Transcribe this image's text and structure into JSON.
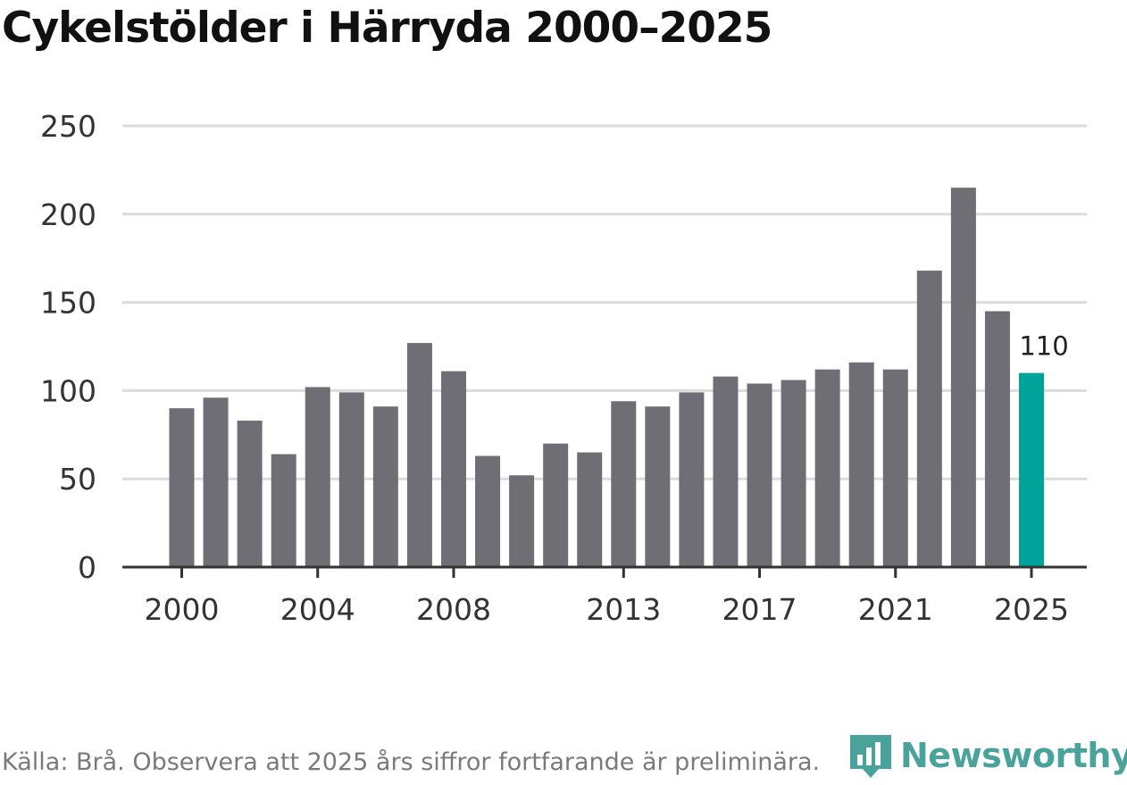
{
  "colors": {
    "bar": "#6f6e75",
    "highlight": "#00a39a",
    "grid": "#dcdcdc",
    "axis": "#333333",
    "text": "#333333",
    "brand": "#4aa39b"
  },
  "source": "Källa: Brå. Observera att 2025 års siffror fortfarande är preliminära.",
  "brand": {
    "name": "Newsworthy",
    "icon": "newsworthy-logo-icon"
  },
  "chart_data": {
    "type": "bar",
    "title": "Cykelstölder i Härryda 2000–2025",
    "xlabel": "",
    "ylabel": "",
    "ylim": [
      0,
      250
    ],
    "yticks": [
      "0",
      "50",
      "100",
      "150",
      "200",
      "250"
    ],
    "categories": [
      "2000",
      "2001",
      "2002",
      "2003",
      "2004",
      "2005",
      "2006",
      "2007",
      "2008",
      "2009",
      "2010",
      "2011",
      "2012",
      "2013",
      "2014",
      "2015",
      "2016",
      "2017",
      "2018",
      "2019",
      "2020",
      "2021",
      "2022",
      "2023",
      "2024",
      "2025"
    ],
    "xtick_labels": [
      "2000",
      "2004",
      "2008",
      "2013",
      "2017",
      "2021",
      "2025"
    ],
    "values": [
      90,
      96,
      83,
      64,
      102,
      99,
      91,
      127,
      111,
      63,
      52,
      70,
      65,
      94,
      91,
      99,
      108,
      104,
      106,
      112,
      116,
      112,
      168,
      215,
      145,
      110
    ],
    "highlight": {
      "category": "2025",
      "label": "110"
    },
    "grid": true
  }
}
